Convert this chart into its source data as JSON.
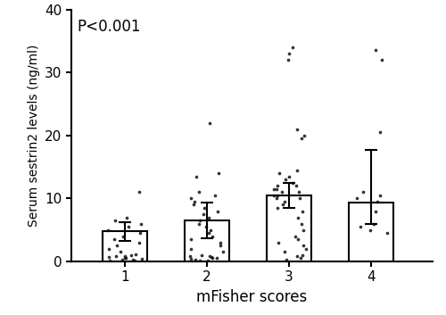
{
  "categories": [
    "1",
    "2",
    "3",
    "4"
  ],
  "bar_means": [
    4.8,
    6.5,
    10.5,
    9.4
  ],
  "bar_sd_upper": [
    1.5,
    2.8,
    2.0,
    8.3
  ],
  "bar_sd_lower": [
    1.5,
    2.8,
    2.0,
    3.5
  ],
  "ylim": [
    0,
    40
  ],
  "yticks": [
    0,
    10,
    20,
    30,
    40
  ],
  "xlabel": "mFisher scores",
  "ylabel": "Serum sestrin2 levels (ng/ml)",
  "annotation": "P<0.001",
  "bar_color": "#ffffff",
  "bar_edgecolor": "#000000",
  "dot_color": "#111111",
  "groups": {
    "1": [
      0.1,
      0.2,
      0.3,
      0.3,
      0.4,
      0.5,
      0.6,
      0.7,
      0.8,
      0.9,
      1.0,
      1.2,
      1.5,
      2.0,
      2.5,
      3.0,
      3.5,
      4.0,
      4.5,
      5.0,
      5.5,
      6.0,
      6.5,
      7.0,
      11.0
    ],
    "2": [
      0.1,
      0.2,
      0.3,
      0.4,
      0.5,
      0.6,
      0.7,
      0.8,
      0.9,
      1.0,
      1.5,
      2.0,
      2.5,
      3.0,
      3.5,
      4.0,
      4.5,
      5.0,
      5.5,
      6.0,
      6.5,
      7.0,
      7.5,
      8.0,
      8.5,
      9.0,
      9.5,
      10.0,
      10.5,
      11.0,
      13.5,
      14.0,
      22.0
    ],
    "3": [
      0.3,
      0.5,
      0.8,
      1.0,
      1.5,
      2.0,
      2.5,
      3.0,
      3.5,
      4.0,
      5.0,
      6.0,
      7.0,
      8.0,
      8.5,
      9.0,
      9.5,
      10.0,
      10.0,
      10.5,
      10.5,
      11.0,
      11.0,
      11.5,
      11.5,
      12.0,
      12.0,
      12.5,
      13.0,
      13.5,
      14.0,
      14.5,
      19.5,
      20.0,
      21.0,
      32.0,
      33.0,
      34.0
    ],
    "4": [
      4.5,
      5.0,
      5.5,
      6.0,
      8.0,
      9.5,
      10.0,
      10.5,
      11.0,
      20.5,
      32.0,
      33.5
    ]
  },
  "bar_width": 0.55,
  "figsize": [
    5.0,
    3.53
  ],
  "dpi": 100
}
